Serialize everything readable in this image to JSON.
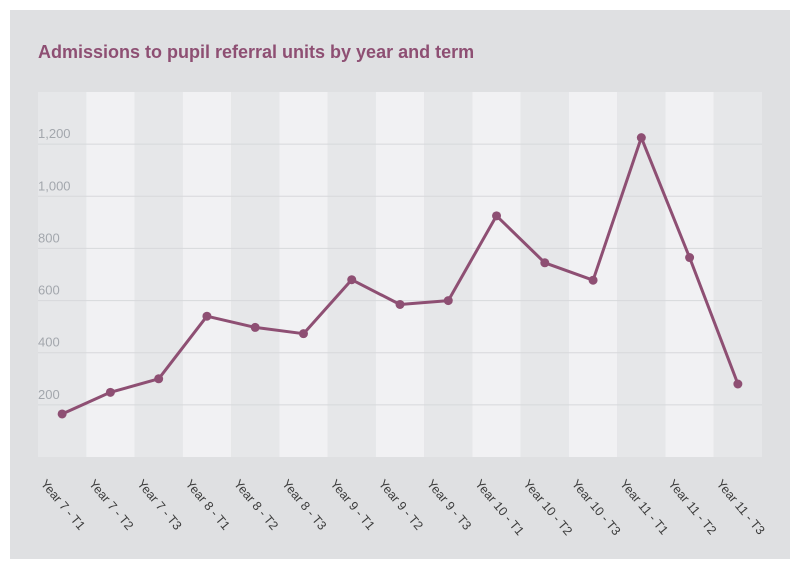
{
  "title": "Admissions to pupil referral units by year and term",
  "colors": {
    "line": "#8e4f73",
    "title": "#8e4f73",
    "card_background": "#dfe0e2",
    "band_light": "#f1f1f3",
    "band_dark": "#e6e7e9",
    "gridline": "#d7d8db",
    "ytick": "#a3a7ad",
    "xtick": "#3c3c3c"
  },
  "chart_data": {
    "type": "line",
    "title": "Admissions to pupil referral units by year and term",
    "xlabel": "",
    "ylabel": "",
    "categories": [
      "Year 7 - T1",
      "Year 7 - T2",
      "Year 7 - T3",
      "Year 8 - T1",
      "Year 8 - T2",
      "Year 8 - T3",
      "Year 9 - T1",
      "Year 9 - T2",
      "Year 9 - T3",
      "Year 10 - T1",
      "Year 10 - T2",
      "Year 10 - T3",
      "Year 11 - T1",
      "Year 11 - T2",
      "Year 11 - T3"
    ],
    "series": [
      {
        "values": [
          165,
          248,
          300,
          540,
          497,
          473,
          680,
          585,
          600,
          925,
          745,
          678,
          1225,
          765,
          280
        ]
      }
    ],
    "yticks": [
      200,
      400,
      600,
      800,
      1000,
      1200
    ],
    "ytick_labels": [
      "200",
      "400",
      "600",
      "800",
      "1,000",
      "1,200"
    ],
    "ylim": [
      0,
      1400
    ],
    "grid": true,
    "legend": "none",
    "markers": true
  }
}
